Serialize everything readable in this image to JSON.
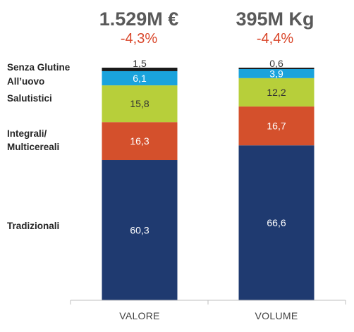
{
  "headers": [
    {
      "total": "1.529M €",
      "delta": "-4,3%"
    },
    {
      "total": "395M Kg",
      "delta": "-4,4%"
    }
  ],
  "category_labels": [
    {
      "key": "senza_glutine",
      "lines": [
        "Senza Glutine"
      ]
    },
    {
      "key": "alluovo",
      "lines": [
        "All’uovo"
      ]
    },
    {
      "key": "salutistici",
      "lines": [
        "Salutistici"
      ]
    },
    {
      "key": "integrali",
      "lines": [
        "Integrali/",
        "Multicereali"
      ]
    },
    {
      "key": "tradizionali",
      "lines": [
        "Tradizionali"
      ]
    }
  ],
  "chart_data": {
    "type": "bar",
    "stacked": true,
    "categories": [
      "VALORE",
      "VOLUME"
    ],
    "series": [
      {
        "name": "Tradizionali",
        "values": [
          60.3,
          66.6
        ],
        "labels": [
          "60,3",
          "66,6"
        ],
        "color": "#1f3a70",
        "label_color": "#ffffff"
      },
      {
        "name": "Integrali/ Multicereali",
        "values": [
          16.3,
          16.7
        ],
        "labels": [
          "16,3",
          "16,7"
        ],
        "color": "#d4502c",
        "label_color": "#ffffff"
      },
      {
        "name": "Salutistici",
        "values": [
          15.8,
          12.2
        ],
        "labels": [
          "15,8",
          "12,2"
        ],
        "color": "#b7cf3a",
        "label_color": "#333333"
      },
      {
        "name": "All’uovo",
        "values": [
          6.1,
          3.9
        ],
        "labels": [
          "6,1",
          "3,9"
        ],
        "color": "#1aa3dc",
        "label_color": "#ffffff"
      },
      {
        "name": "Senza Glutine",
        "values": [
          1.5,
          0.6
        ],
        "labels": [
          "1,5",
          "0,6"
        ],
        "color": "#1a1a1a",
        "label_color": "#333333"
      }
    ],
    "ylim": [
      0,
      100
    ],
    "grid": false,
    "legend": "left"
  }
}
